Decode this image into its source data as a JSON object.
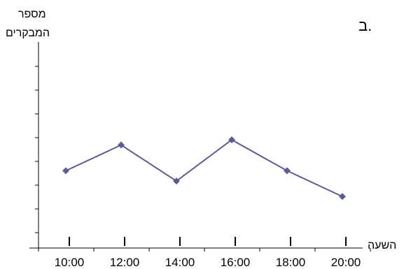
{
  "chart_data": {
    "type": "line",
    "label": "ב.",
    "ylabel_line1": "מספר",
    "ylabel_line2": "המבקרים",
    "xlabel": "השעה",
    "categories": [
      "10:00",
      "12:00",
      "14:00",
      "16:00",
      "18:00",
      "20:00"
    ],
    "y_tick_count": 8,
    "series": [
      {
        "values": [
          3,
          4,
          2.6,
          4.2,
          3,
          2
        ]
      }
    ],
    "ylim": [
      0,
      8
    ],
    "grid": false,
    "colors": {
      "line": "#5b5b95",
      "marker": "#5b5b95",
      "axis": "#000000"
    }
  }
}
